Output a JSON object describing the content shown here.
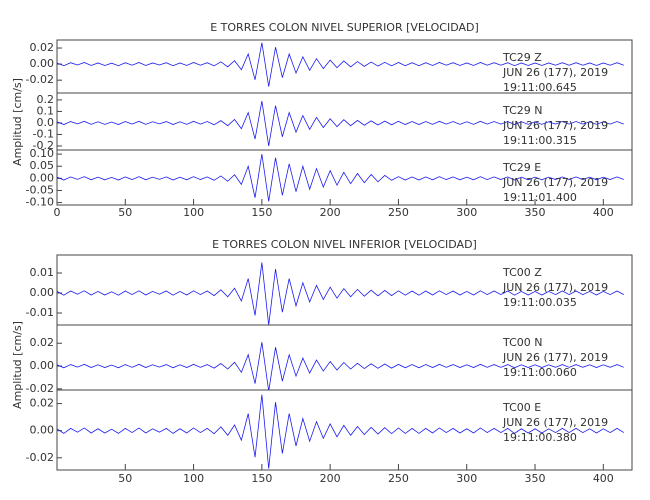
{
  "chart_data": [
    {
      "type": "line",
      "title": "E TORRES COLON NIVEL SUPERIOR [VELOCIDAD]",
      "ylabel": "Amplitud [cm/s]",
      "xlim": [
        0,
        421
      ],
      "xticks": [
        0,
        50,
        100,
        150,
        200,
        250,
        300,
        350,
        400
      ],
      "x": [
        0,
        5,
        10,
        15,
        20,
        25,
        30,
        35,
        40,
        45,
        50,
        55,
        60,
        65,
        70,
        75,
        80,
        85,
        90,
        95,
        100,
        105,
        110,
        115,
        120,
        125,
        130,
        135,
        140,
        145,
        150,
        155,
        160,
        165,
        170,
        175,
        180,
        185,
        190,
        195,
        200,
        205,
        210,
        215,
        220,
        225,
        230,
        235,
        240,
        245,
        250,
        255,
        260,
        265,
        270,
        275,
        280,
        285,
        290,
        295,
        300,
        305,
        310,
        315,
        320,
        325,
        330,
        335,
        340,
        345,
        350,
        355,
        360,
        365,
        370,
        375,
        380,
        385,
        390,
        395,
        400,
        405,
        410,
        415
      ],
      "series": [
        {
          "annotation": [
            "TC29   Z",
            "JUN 26 (177), 2019",
            "19:11:00.645"
          ],
          "color": "#1c1cf0",
          "ylim": [
            -0.036,
            0.03
          ],
          "yticks": [
            {
              "value": 0.02,
              "label": "0.02"
            },
            {
              "value": 0,
              "label": "0.00"
            },
            {
              "value": -0.02,
              "label": "-0.02"
            }
          ],
          "values": [
            0.0014,
            -0.002,
            0.0017,
            -0.0011,
            0.002,
            -0.0017,
            0.0014,
            -0.0017,
            0.0011,
            -0.002,
            0.0017,
            -0.0014,
            0.002,
            -0.0017,
            0.0014,
            -0.0011,
            0.0017,
            -0.002,
            0.0014,
            -0.0017,
            0.002,
            -0.0014,
            0.0017,
            -0.0022,
            0.0028,
            -0.0034,
            0.0042,
            -0.007,
            0.0126,
            -0.0196,
            0.0266,
            -0.028,
            0.021,
            -0.0168,
            0.0126,
            -0.0112,
            0.009,
            -0.0078,
            0.0067,
            -0.0056,
            0.005,
            -0.0045,
            0.0039,
            -0.0034,
            0.0031,
            -0.0028,
            0.0025,
            -0.0025,
            0.0022,
            -0.0022,
            0.002,
            -0.002,
            0.0017,
            -0.002,
            0.0017,
            -0.0017,
            0.002,
            -0.0014,
            0.0017,
            -0.0017,
            0.0014,
            -0.0017,
            0.002,
            -0.0014,
            0.0017,
            -0.0014,
            0.0017,
            -0.002,
            0.0014,
            -0.0017,
            0.0014,
            -0.0017,
            0.0014,
            -0.0014,
            0.0017,
            -0.0014,
            0.0017,
            -0.0014,
            0.0014,
            -0.0017,
            0.0014,
            -0.0014,
            0.0017,
            -0.0014
          ]
        },
        {
          "annotation": [
            "TC29   N",
            "JUN 26 (177), 2019",
            "19:11:00.315"
          ],
          "color": "#1c1cf0",
          "ylim": [
            -0.235,
            0.26
          ],
          "yticks": [
            0.2,
            0.1,
            {
              "value": 0,
              "label": "0.0"
            },
            -0.1,
            -0.2
          ],
          "values": [
            0.01,
            -0.014,
            0.012,
            -0.008,
            0.014,
            -0.012,
            0.01,
            -0.012,
            0.008,
            -0.014,
            0.012,
            -0.01,
            0.014,
            -0.012,
            0.01,
            -0.008,
            0.012,
            -0.014,
            0.01,
            -0.012,
            0.014,
            -0.01,
            0.012,
            -0.016,
            0.02,
            -0.024,
            0.03,
            -0.05,
            0.09,
            -0.14,
            0.19,
            -0.2,
            0.15,
            -0.12,
            0.09,
            -0.08,
            0.064,
            -0.056,
            0.048,
            -0.04,
            0.036,
            -0.032,
            0.028,
            -0.024,
            0.022,
            -0.02,
            0.018,
            -0.018,
            0.016,
            -0.016,
            0.014,
            -0.014,
            0.012,
            -0.014,
            0.012,
            -0.012,
            0.014,
            -0.01,
            0.012,
            -0.012,
            0.01,
            -0.012,
            0.014,
            -0.01,
            0.012,
            -0.01,
            0.012,
            -0.014,
            0.01,
            -0.012,
            0.01,
            -0.012,
            0.01,
            -0.01,
            0.012,
            -0.01,
            0.012,
            -0.01,
            0.01,
            -0.012,
            0.01,
            -0.01,
            0.012,
            -0.01
          ]
        },
        {
          "annotation": [
            "TC29   E",
            "JUN 26 (177), 2019",
            "19:11:01.400"
          ],
          "color": "#1c1cf0",
          "ylim": [
            -0.11,
            0.117
          ],
          "yticks": [
            {
              "value": 0.1,
              "label": "0.10"
            },
            0.05,
            {
              "value": 0,
              "label": "0.00"
            },
            -0.05,
            {
              "value": -0.1,
              "label": "-0.10"
            }
          ],
          "values": [
            0.005,
            -0.007,
            0.006,
            -0.004,
            0.007,
            -0.006,
            0.005,
            -0.006,
            0.004,
            -0.007,
            0.006,
            -0.005,
            0.007,
            -0.006,
            0.005,
            -0.004,
            0.006,
            -0.007,
            0.005,
            -0.006,
            0.007,
            -0.005,
            0.006,
            -0.008,
            0.01,
            -0.012,
            0.015,
            -0.025,
            0.05,
            -0.08,
            0.1,
            -0.095,
            0.085,
            -0.07,
            0.06,
            -0.055,
            0.05,
            -0.045,
            0.04,
            -0.036,
            0.032,
            -0.028,
            0.025,
            -0.022,
            0.02,
            -0.018,
            0.016,
            -0.014,
            0.012,
            -0.008,
            0.007,
            -0.007,
            0.006,
            -0.007,
            0.006,
            -0.006,
            0.007,
            -0.005,
            0.006,
            -0.006,
            0.005,
            -0.006,
            0.007,
            -0.005,
            0.006,
            -0.005,
            0.006,
            -0.007,
            0.005,
            -0.006,
            0.005,
            -0.006,
            0.005,
            -0.005,
            0.006,
            -0.005,
            0.006,
            -0.005,
            0.005,
            -0.006,
            0.005,
            -0.005,
            0.006,
            -0.005
          ]
        }
      ]
    },
    {
      "type": "line",
      "title": "E TORRES COLON NIVEL INFERIOR [VELOCIDAD]",
      "ylabel": "Amplitud [cm/s]",
      "xlim": [
        0,
        421
      ],
      "xticks": [
        50,
        100,
        150,
        200,
        250,
        300,
        350,
        400
      ],
      "x": [
        0,
        5,
        10,
        15,
        20,
        25,
        30,
        35,
        40,
        45,
        50,
        55,
        60,
        65,
        70,
        75,
        80,
        85,
        90,
        95,
        100,
        105,
        110,
        115,
        120,
        125,
        130,
        135,
        140,
        145,
        150,
        155,
        160,
        165,
        170,
        175,
        180,
        185,
        190,
        195,
        200,
        205,
        210,
        215,
        220,
        225,
        230,
        235,
        240,
        245,
        250,
        255,
        260,
        265,
        270,
        275,
        280,
        285,
        290,
        295,
        300,
        305,
        310,
        315,
        320,
        325,
        330,
        335,
        340,
        345,
        350,
        355,
        360,
        365,
        370,
        375,
        380,
        385,
        390,
        395,
        400,
        405,
        410,
        415
      ],
      "series": [
        {
          "annotation": [
            "TC00   Z",
            "JUN 26 (177), 2019",
            "19:11:00.035"
          ],
          "color": "#1c1cf0",
          "ylim": [
            -0.016,
            0.019
          ],
          "yticks": [
            0.01,
            {
              "value": 0,
              "label": "0.00"
            },
            -0.01
          ],
          "values": [
            0.0008,
            -0.0011,
            0.001,
            -0.0006,
            0.0011,
            -0.001,
            0.0008,
            -0.001,
            0.0006,
            -0.0011,
            0.001,
            -0.0008,
            0.0011,
            -0.001,
            0.0008,
            -0.0006,
            0.001,
            -0.0011,
            0.0008,
            -0.001,
            0.0011,
            -0.0008,
            0.001,
            -0.0013,
            0.0016,
            -0.0019,
            0.0024,
            -0.004,
            0.0072,
            -0.0112,
            0.0152,
            -0.016,
            0.012,
            -0.0096,
            0.0072,
            -0.0064,
            0.0051,
            -0.0045,
            0.0038,
            -0.0032,
            0.0029,
            -0.0026,
            0.0022,
            -0.0019,
            0.0018,
            -0.0016,
            0.0014,
            -0.0014,
            0.0013,
            -0.0013,
            0.0011,
            -0.0011,
            0.001,
            -0.0011,
            0.001,
            -0.001,
            0.0011,
            -0.0008,
            0.001,
            -0.001,
            0.0008,
            -0.001,
            0.0011,
            -0.0008,
            0.001,
            -0.0008,
            0.001,
            -0.0011,
            0.0008,
            -0.001,
            0.0008,
            -0.001,
            0.0008,
            -0.0008,
            0.001,
            -0.0008,
            0.001,
            -0.0008,
            0.0008,
            -0.001,
            0.0008,
            -0.0008,
            0.001,
            -0.0008
          ]
        },
        {
          "annotation": [
            "TC00   N",
            "JUN 26 (177), 2019",
            "19:11:00.060"
          ],
          "color": "#1c1cf0",
          "ylim": [
            -0.021,
            0.036
          ],
          "yticks": [
            0.02,
            {
              "value": 0,
              "label": "0.00"
            },
            -0.02
          ],
          "values": [
            0.0011,
            -0.0015,
            0.0013,
            -0.0009,
            0.0015,
            -0.0013,
            0.0011,
            -0.0013,
            0.0009,
            -0.0015,
            0.0013,
            -0.0011,
            0.0015,
            -0.0013,
            0.0011,
            -0.0009,
            0.0013,
            -0.0015,
            0.0011,
            -0.0013,
            0.0015,
            -0.0011,
            0.0013,
            -0.0018,
            0.0022,
            -0.0026,
            0.0033,
            -0.0055,
            0.0099,
            -0.0154,
            0.0209,
            -0.022,
            0.0165,
            -0.0132,
            0.0099,
            -0.0088,
            0.007,
            -0.0062,
            0.0053,
            -0.0044,
            0.004,
            -0.0035,
            0.0031,
            -0.0026,
            0.0024,
            -0.0022,
            0.002,
            -0.002,
            0.0018,
            -0.0018,
            0.0015,
            -0.0015,
            0.0013,
            -0.0015,
            0.0013,
            -0.0013,
            0.0015,
            -0.0011,
            0.0013,
            -0.0013,
            0.0011,
            -0.0013,
            0.0015,
            -0.0011,
            0.0013,
            -0.0011,
            0.0013,
            -0.0015,
            0.0011,
            -0.0013,
            0.0011,
            -0.0013,
            0.0011,
            -0.0011,
            0.0013,
            -0.0011,
            0.0013,
            -0.0011,
            0.0011,
            -0.0013,
            0.0011,
            -0.0011,
            0.0013,
            -0.0011
          ]
        },
        {
          "annotation": [
            "TC00   E",
            "JUN 26 (177), 2019",
            "19:11:00.380"
          ],
          "color": "#1c1cf0",
          "ylim": [
            -0.029,
            0.03
          ],
          "yticks": [
            0.02,
            {
              "value": 0,
              "label": "0.00"
            },
            -0.02
          ],
          "values": [
            0.0014,
            -0.002,
            0.0017,
            -0.0011,
            0.002,
            -0.0017,
            0.0014,
            -0.0017,
            0.0011,
            -0.002,
            0.0017,
            -0.0014,
            0.002,
            -0.0017,
            0.0014,
            -0.0011,
            0.0017,
            -0.002,
            0.0014,
            -0.0017,
            0.002,
            -0.0014,
            0.0017,
            -0.0022,
            0.0028,
            -0.0034,
            0.0042,
            -0.007,
            0.0126,
            -0.0196,
            0.0266,
            -0.028,
            0.021,
            -0.0168,
            0.0126,
            -0.0112,
            0.009,
            -0.0078,
            0.0067,
            -0.0056,
            0.005,
            -0.0045,
            0.0039,
            -0.0034,
            0.0031,
            -0.0028,
            0.0025,
            -0.0025,
            0.0022,
            -0.0022,
            0.002,
            -0.002,
            0.0017,
            -0.002,
            0.0017,
            -0.0017,
            0.002,
            -0.0014,
            0.0017,
            -0.0017,
            0.0014,
            -0.0017,
            0.002,
            -0.0014,
            0.0017,
            -0.0014,
            0.0017,
            -0.002,
            0.0014,
            -0.0017,
            0.0014,
            -0.0017,
            0.0014,
            -0.0014,
            0.0017,
            -0.0014,
            0.0017,
            -0.0014,
            0.0014,
            -0.0017,
            0.0014,
            -0.0014,
            0.0017,
            -0.0014
          ]
        }
      ]
    }
  ]
}
